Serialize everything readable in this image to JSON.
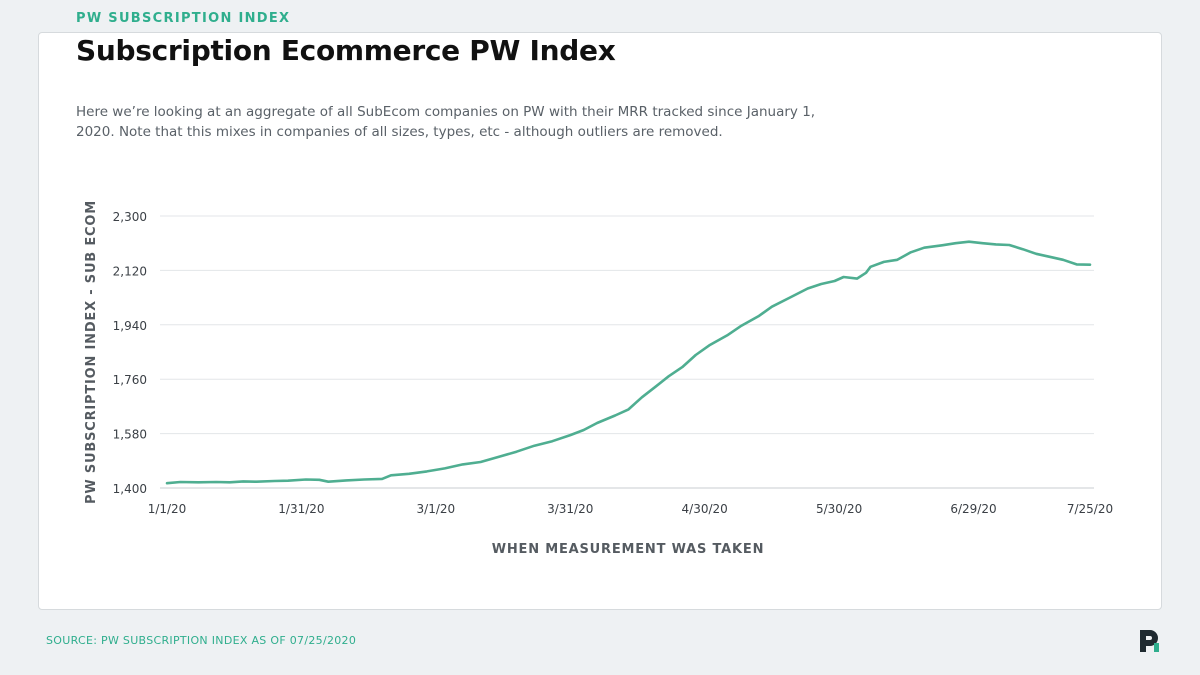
{
  "header": {
    "eyebrow": "PW SUBSCRIPTION INDEX",
    "title": "Subscription Ecommerce PW Index",
    "subtitle": "Here we’re looking at an aggregate of all SubEcom companies on PW with their MRR tracked since January 1, 2020. Note that this mixes in companies of all sizes, types, etc - although outliers are removed."
  },
  "footer": {
    "source": "SOURCE: PW SUBSCRIPTION INDEX AS OF 07/25/2020"
  },
  "brand": {
    "accent": "#2fae8d",
    "line_color": "#4fae91",
    "logo_color": "#1f2a30",
    "logo_accent": "#2fae8d",
    "logo_icon": "profitwell-logo-icon"
  },
  "chart_data": {
    "type": "line",
    "title": "Subscription Ecommerce PW Index",
    "xlabel": "WHEN MEASUREMENT WAS TAKEN",
    "ylabel": "PW SUBSCRIPTION INDEX - SUB ECOM",
    "ylim": [
      1400,
      2300
    ],
    "xlim": [
      "2020-01-01",
      "2020-07-25"
    ],
    "yticks": [
      1400,
      1580,
      1760,
      1940,
      2120,
      2300
    ],
    "ytick_labels": [
      "1,400",
      "1,580",
      "1,760",
      "1,940",
      "2,120",
      "2,300"
    ],
    "xticks": [
      "2020-01-01",
      "2020-01-31",
      "2020-03-01",
      "2020-03-31",
      "2020-04-30",
      "2020-05-30",
      "2020-06-29",
      "2020-07-25"
    ],
    "xtick_labels": [
      "1/1/20",
      "1/31/20",
      "3/1/20",
      "3/31/20",
      "4/30/20",
      "5/30/20",
      "6/29/20",
      "7/25/20"
    ],
    "grid": true,
    "series": [
      {
        "points": [
          [
            "2020-01-01",
            1416
          ],
          [
            "2020-01-04",
            1420
          ],
          [
            "2020-01-08",
            1419
          ],
          [
            "2020-01-12",
            1420
          ],
          [
            "2020-01-15",
            1419
          ],
          [
            "2020-01-18",
            1422
          ],
          [
            "2020-01-21",
            1421
          ],
          [
            "2020-01-25",
            1423
          ],
          [
            "2020-01-28",
            1424
          ],
          [
            "2020-02-01",
            1428
          ],
          [
            "2020-02-04",
            1427
          ],
          [
            "2020-02-06",
            1421
          ],
          [
            "2020-02-10",
            1425
          ],
          [
            "2020-02-14",
            1428
          ],
          [
            "2020-02-18",
            1430
          ],
          [
            "2020-02-20",
            1442
          ],
          [
            "2020-02-24",
            1447
          ],
          [
            "2020-02-28",
            1455
          ],
          [
            "2020-03-03",
            1465
          ],
          [
            "2020-03-07",
            1478
          ],
          [
            "2020-03-11",
            1486
          ],
          [
            "2020-03-15",
            1503
          ],
          [
            "2020-03-19",
            1520
          ],
          [
            "2020-03-23",
            1540
          ],
          [
            "2020-03-27",
            1555
          ],
          [
            "2020-03-31",
            1575
          ],
          [
            "2020-04-03",
            1592
          ],
          [
            "2020-04-06",
            1615
          ],
          [
            "2020-04-10",
            1640
          ],
          [
            "2020-04-13",
            1660
          ],
          [
            "2020-04-16",
            1700
          ],
          [
            "2020-04-19",
            1735
          ],
          [
            "2020-04-22",
            1770
          ],
          [
            "2020-04-25",
            1800
          ],
          [
            "2020-04-28",
            1840
          ],
          [
            "2020-05-01",
            1872
          ],
          [
            "2020-05-05",
            1905
          ],
          [
            "2020-05-08",
            1935
          ],
          [
            "2020-05-12",
            1968
          ],
          [
            "2020-05-15",
            2000
          ],
          [
            "2020-05-19",
            2030
          ],
          [
            "2020-05-23",
            2060
          ],
          [
            "2020-05-26",
            2075
          ],
          [
            "2020-05-29",
            2085
          ],
          [
            "2020-05-31",
            2098
          ],
          [
            "2020-06-03",
            2093
          ],
          [
            "2020-06-05",
            2112
          ],
          [
            "2020-06-06",
            2132
          ],
          [
            "2020-06-09",
            2148
          ],
          [
            "2020-06-12",
            2155
          ],
          [
            "2020-06-15",
            2180
          ],
          [
            "2020-06-18",
            2195
          ],
          [
            "2020-06-22",
            2203
          ],
          [
            "2020-06-25",
            2210
          ],
          [
            "2020-06-28",
            2215
          ],
          [
            "2020-07-01",
            2210
          ],
          [
            "2020-07-04",
            2206
          ],
          [
            "2020-07-07",
            2204
          ],
          [
            "2020-07-10",
            2190
          ],
          [
            "2020-07-13",
            2175
          ],
          [
            "2020-07-16",
            2165
          ],
          [
            "2020-07-19",
            2155
          ],
          [
            "2020-07-22",
            2140
          ],
          [
            "2020-07-25",
            2139
          ]
        ]
      }
    ]
  }
}
